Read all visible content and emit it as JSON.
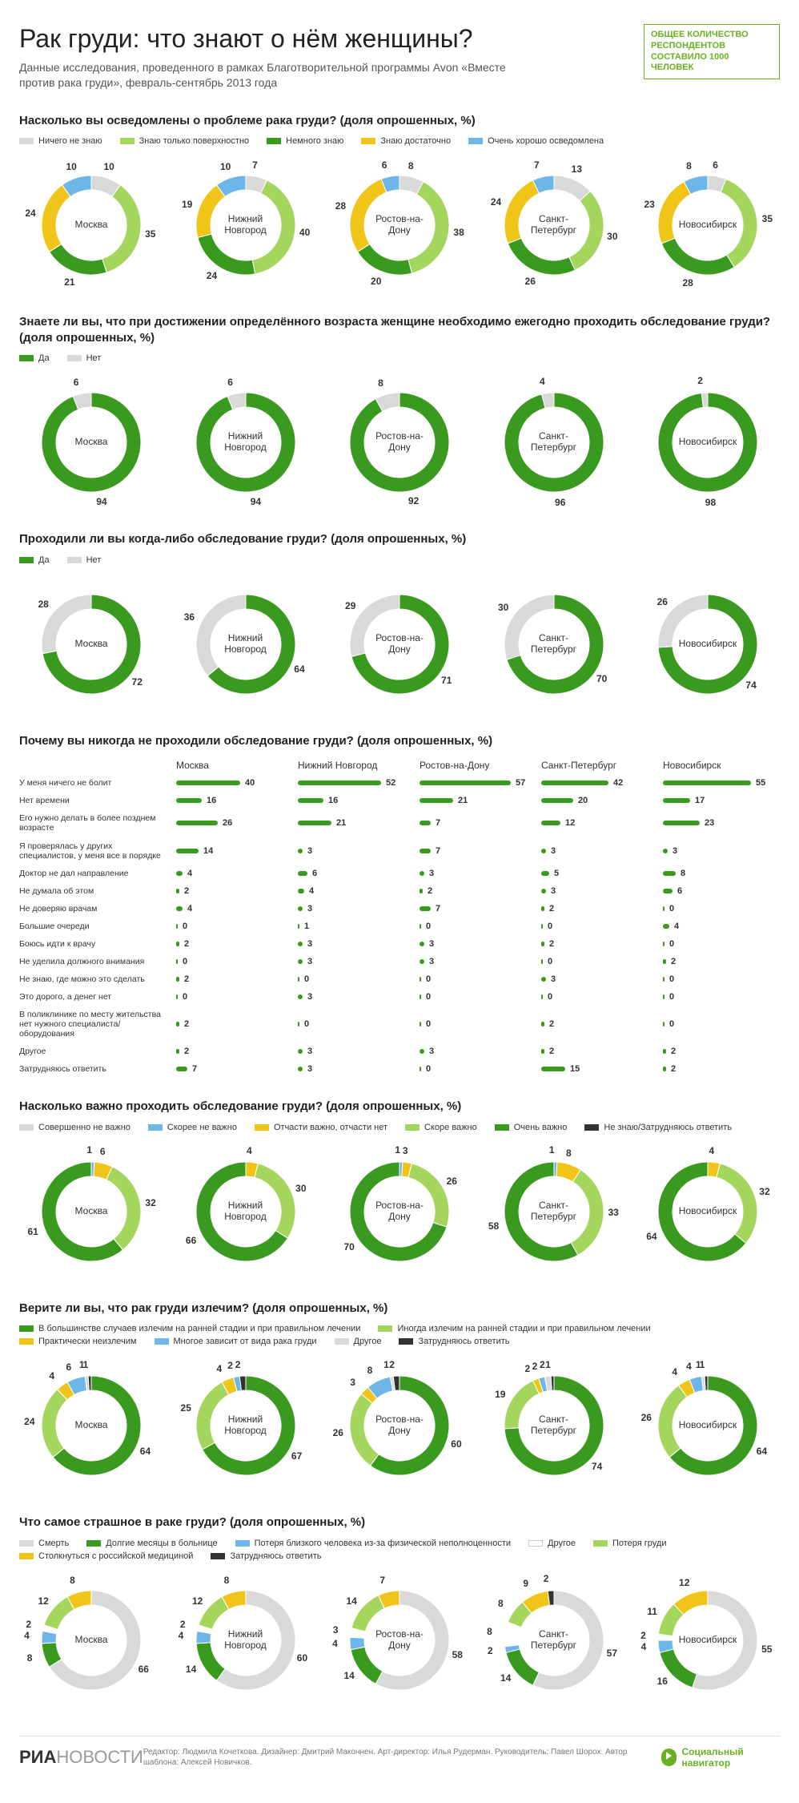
{
  "colors": {
    "grey": "#d9d9d9",
    "ltgreen": "#a4d65e",
    "green": "#3a9a1f",
    "yellow": "#f0c419",
    "blue": "#6db6e8",
    "dark": "#333333",
    "white": "#ffffff"
  },
  "header": {
    "title": "Рак груди: что знают о нём женщины?",
    "subtitle": "Данные исследования, проведенного в рамках Благотворительной программы Avon «Вместе против рака груди», февраль-сентябрь 2013 года",
    "badge": "ОБЩЕЕ КОЛИЧЕСТВО РЕСПОНДЕНТОВ СОСТАВИЛО 1000 ЧЕЛОВЕК"
  },
  "cities": [
    "Москва",
    "Нижний Новгород",
    "Ростов-на-Дону",
    "Санкт-Петербург",
    "Новосибирск"
  ],
  "q1": {
    "title": "Насколько вы осведомлены о проблеме рака груди? (доля опрошенных, %)",
    "legend": [
      {
        "c": "grey",
        "t": "Ничего не знаю"
      },
      {
        "c": "ltgreen",
        "t": "Знаю только поверхностно"
      },
      {
        "c": "green",
        "t": "Немного знаю"
      },
      {
        "c": "yellow",
        "t": "Знаю достаточно"
      },
      {
        "c": "blue",
        "t": "Очень хорошо осведомлена"
      }
    ],
    "data": [
      {
        "v": [
          10,
          35,
          21,
          24,
          10
        ]
      },
      {
        "v": [
          7,
          40,
          24,
          19,
          10
        ]
      },
      {
        "v": [
          8,
          38,
          20,
          28,
          6
        ]
      },
      {
        "v": [
          13,
          30,
          26,
          24,
          7
        ]
      },
      {
        "v": [
          6,
          35,
          28,
          23,
          8
        ]
      }
    ]
  },
  "q2": {
    "title": "Знаете ли вы, что при достижении определённого возраста женщине необходимо ежегодно проходить обследование груди? (доля опрошенных, %)",
    "legend": [
      {
        "c": "green",
        "t": "Да"
      },
      {
        "c": "grey",
        "t": "Нет"
      }
    ],
    "data": [
      {
        "v": [
          94,
          6
        ]
      },
      {
        "v": [
          94,
          6
        ]
      },
      {
        "v": [
          92,
          8
        ]
      },
      {
        "v": [
          96,
          4
        ]
      },
      {
        "v": [
          98,
          2
        ]
      }
    ]
  },
  "q3": {
    "title": "Проходили ли вы когда-либо обследование груди? (доля опрошенных, %)",
    "legend": [
      {
        "c": "green",
        "t": "Да"
      },
      {
        "c": "grey",
        "t": "Нет"
      }
    ],
    "data": [
      {
        "v": [
          72,
          28
        ]
      },
      {
        "v": [
          64,
          36
        ]
      },
      {
        "v": [
          71,
          29
        ]
      },
      {
        "v": [
          70,
          30
        ]
      },
      {
        "v": [
          74,
          26
        ]
      }
    ]
  },
  "q4": {
    "title": "Почему вы никогда не проходили обследование груди? (доля опрошенных, %)",
    "rows": [
      "У меня ничего не болит",
      "Нет времени",
      "Его нужно делать в более позднем возрасте",
      "Я проверялась у других специалистов, у меня все в порядке",
      "Доктор не дал направление",
      "Не думала об этом",
      "Не доверяю врачам",
      "Большие очереди",
      "Боюсь идти к врачу",
      "Не уделила должного внимания",
      "Не знаю, где можно это сделать",
      "Это дорого, а денег нет",
      "В поликлинике по месту жительства нет нужного специалиста/оборудования",
      "Другое",
      "Затрудняюсь ответить"
    ],
    "data": [
      [
        40,
        52,
        57,
        42,
        55
      ],
      [
        16,
        16,
        21,
        20,
        17
      ],
      [
        26,
        21,
        7,
        12,
        23
      ],
      [
        14,
        3,
        7,
        3,
        3
      ],
      [
        4,
        6,
        3,
        5,
        8
      ],
      [
        2,
        4,
        2,
        3,
        6
      ],
      [
        4,
        3,
        7,
        2,
        0
      ],
      [
        0,
        1,
        0,
        0,
        4
      ],
      [
        2,
        3,
        3,
        2,
        0
      ],
      [
        0,
        3,
        3,
        0,
        2
      ],
      [
        2,
        0,
        0,
        3,
        0
      ],
      [
        0,
        3,
        0,
        0,
        0
      ],
      [
        2,
        0,
        0,
        2,
        0
      ],
      [
        2,
        3,
        3,
        2,
        2
      ],
      [
        7,
        3,
        0,
        15,
        2
      ]
    ]
  },
  "q5": {
    "title": "Насколько важно проходить обследование груди? (доля опрошенных, %)",
    "legend": [
      {
        "c": "grey",
        "t": "Совершенно не важно"
      },
      {
        "c": "blue",
        "t": "Скорее не важно"
      },
      {
        "c": "yellow",
        "t": "Отчасти важно, отчасти нет"
      },
      {
        "c": "ltgreen",
        "t": "Скоре важно"
      },
      {
        "c": "green",
        "t": "Очень важно"
      },
      {
        "c": "dark",
        "t": "Не знаю/Затрудняюсь ответить"
      }
    ],
    "data": [
      {
        "v": [
          0,
          1,
          6,
          32,
          61,
          0
        ]
      },
      {
        "v": [
          0,
          0,
          4,
          30,
          66,
          0
        ]
      },
      {
        "v": [
          0,
          1,
          3,
          26,
          70,
          0
        ]
      },
      {
        "v": [
          0,
          1,
          8,
          33,
          58,
          0
        ]
      },
      {
        "v": [
          0,
          0,
          4,
          32,
          64,
          0
        ]
      }
    ]
  },
  "q6": {
    "title": "Верите ли вы, что рак груди излечим? (доля опрошенных, %)",
    "legend": [
      {
        "c": "green",
        "t": "В большинстве случаев излечим на ранней стадии и при правильном лечении"
      },
      {
        "c": "ltgreen",
        "t": "Иногда излечим на ранней стадии и при правильном лечении"
      },
      {
        "c": "yellow",
        "t": "Практически неизлечим"
      },
      {
        "c": "blue",
        "t": "Многое зависит от вида рака груди"
      },
      {
        "c": "grey",
        "t": "Другое"
      },
      {
        "c": "dark",
        "t": "Затрудняюсь ответить"
      }
    ],
    "data": [
      {
        "v": [
          64,
          24,
          4,
          6,
          1,
          1
        ]
      },
      {
        "v": [
          67,
          25,
          4,
          2,
          0,
          2
        ]
      },
      {
        "v": [
          60,
          26,
          3,
          8,
          1,
          2
        ]
      },
      {
        "v": [
          74,
          19,
          2,
          2,
          2,
          1
        ]
      },
      {
        "v": [
          64,
          26,
          4,
          4,
          1,
          1
        ]
      }
    ]
  },
  "q7": {
    "title": "Что самое страшное в раке груди? (доля опрошенных, %)",
    "legend": [
      {
        "c": "grey",
        "t": "Смерть"
      },
      {
        "c": "green",
        "t": "Долгие месяцы в больнице"
      },
      {
        "c": "blue",
        "t": "Потеря близкого человека из-за физической неполноценности"
      },
      {
        "c": "white",
        "t": "Другое"
      },
      {
        "c": "ltgreen",
        "t": "Потеря груди"
      },
      {
        "c": "yellow",
        "t": "Столкнуться с российской медициной"
      },
      {
        "c": "dark",
        "t": "Затрудняюсь ответить"
      }
    ],
    "data": [
      {
        "v": [
          66,
          8,
          4,
          2,
          12,
          8,
          0
        ]
      },
      {
        "v": [
          60,
          14,
          4,
          2,
          12,
          8,
          0
        ]
      },
      {
        "v": [
          58,
          14,
          4,
          3,
          14,
          7,
          0
        ]
      },
      {
        "v": [
          57,
          14,
          2,
          8,
          8,
          9,
          2
        ]
      },
      {
        "v": [
          55,
          16,
          4,
          2,
          11,
          12,
          0
        ]
      }
    ]
  },
  "footer": {
    "brand": "РИА",
    "brand2": "НОВОСТИ",
    "credits": "Редактор: Людмила Кочеткова. Дизайнер: Дмитрий Маконнен.\nАрт-директор: Илья Рудерман. Руководитель: Павел Шорох. Автор шаблона: Алексей Новичков.",
    "social": "Социальный навигатор"
  }
}
